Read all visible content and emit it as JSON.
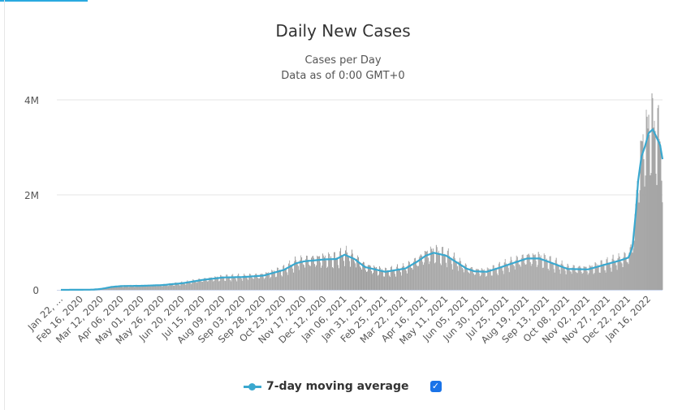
{
  "chart_data": {
    "type": "bar",
    "title": "Daily New Cases",
    "subtitle": "Cases per Day",
    "subtitle2": "Data as of 0:00 GMT+0",
    "xlabel": "",
    "ylabel": "",
    "ylim": [
      0,
      4000000
    ],
    "y_ticks": [
      {
        "value": 0,
        "label": "0"
      },
      {
        "value": 2000000,
        "label": "2M"
      },
      {
        "value": 4000000,
        "label": "4M"
      }
    ],
    "x_range_days": [
      0,
      742
    ],
    "x_labels": [
      "Jan 22, …",
      "Feb 16, 2020",
      "Mar 12, 2020",
      "Apr 06, 2020",
      "May 01, 2020",
      "May 26, 2020",
      "Jun 20, 2020",
      "Jul 15, 2020",
      "Aug 09, 2020",
      "Sep 03, 2020",
      "Sep 28, 2020",
      "Oct 23, 2020",
      "Nov 17, 2020",
      "Dec 12, 2020",
      "Jan 06, 2021",
      "Jan 31, 2021",
      "Feb 25, 2021",
      "Mar 22, 2021",
      "Apr 16, 2021",
      "May 11, 2021",
      "Jun 05, 2021",
      "Jun 30, 2021",
      "Jul 25, 2021",
      "Aug 19, 2021",
      "Sep 13, 2021",
      "Oct 08, 2021",
      "Nov 02, 2021",
      "Nov 27, 2021",
      "Dec 22, 2021",
      "Jan 16, 2022"
    ],
    "x_label_step_days": 25,
    "series": [
      {
        "name": "Daily New Cases",
        "type": "bar",
        "color": "#999999"
      },
      {
        "name": "7-day moving average",
        "type": "line",
        "color": "#3aa8cf",
        "points_day_value": [
          [
            0,
            0
          ],
          [
            25,
            2000
          ],
          [
            40,
            5000
          ],
          [
            50,
            20000
          ],
          [
            62,
            60000
          ],
          [
            75,
            80000
          ],
          [
            100,
            85000
          ],
          [
            125,
            100000
          ],
          [
            150,
            140000
          ],
          [
            175,
            210000
          ],
          [
            200,
            260000
          ],
          [
            225,
            270000
          ],
          [
            250,
            300000
          ],
          [
            275,
            420000
          ],
          [
            290,
            560000
          ],
          [
            300,
            600000
          ],
          [
            325,
            640000
          ],
          [
            340,
            650000
          ],
          [
            350,
            740000
          ],
          [
            362,
            650000
          ],
          [
            375,
            480000
          ],
          [
            400,
            380000
          ],
          [
            425,
            450000
          ],
          [
            440,
            600000
          ],
          [
            450,
            720000
          ],
          [
            460,
            780000
          ],
          [
            475,
            720000
          ],
          [
            490,
            560000
          ],
          [
            500,
            450000
          ],
          [
            510,
            390000
          ],
          [
            525,
            380000
          ],
          [
            540,
            460000
          ],
          [
            550,
            520000
          ],
          [
            575,
            660000
          ],
          [
            590,
            660000
          ],
          [
            600,
            600000
          ],
          [
            625,
            440000
          ],
          [
            650,
            430000
          ],
          [
            675,
            550000
          ],
          [
            690,
            620000
          ],
          [
            700,
            680000
          ],
          [
            705,
            900000
          ],
          [
            709,
            1600000
          ],
          [
            712,
            2300000
          ],
          [
            716,
            2800000
          ],
          [
            720,
            3000000
          ],
          [
            725,
            3300000
          ],
          [
            730,
            3380000
          ],
          [
            735,
            3200000
          ],
          [
            739,
            3050000
          ],
          [
            742,
            2750000
          ]
        ]
      }
    ]
  },
  "legend": {
    "label": "7-day moving average",
    "checked_mark": "✓"
  }
}
